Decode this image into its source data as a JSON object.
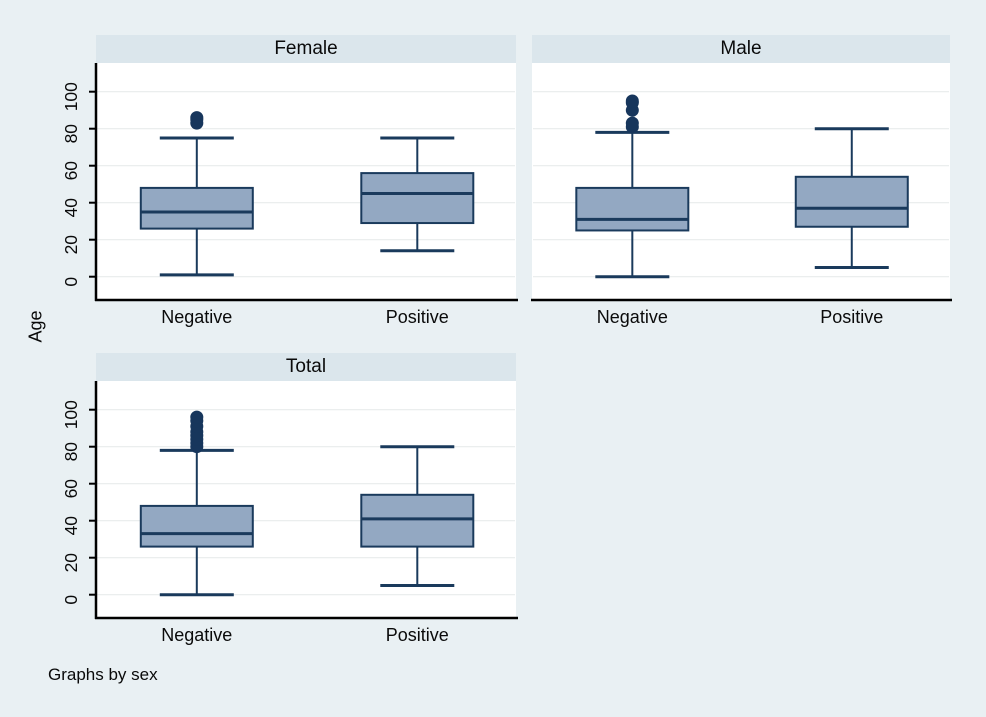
{
  "figure": {
    "ylabel": "Age",
    "caption": "Graphs by sex",
    "colors": {
      "background": "#e9f0f3",
      "panel_header": "#dbe6ec",
      "plot_background": "#ffffff",
      "grid": "#e8ecec",
      "axis": "#000000",
      "box_fill": "#93a8c2",
      "box_border": "#1a3a5c",
      "whisker": "#1a3a5c",
      "median": "#1a3a5c",
      "outlier": "#17365c"
    }
  },
  "chart_data": [
    {
      "type": "box",
      "panel": "Female",
      "categories": [
        "Negative",
        "Positive"
      ],
      "ylabel": "Age",
      "ylim": [
        0,
        100
      ],
      "yticks": [
        0,
        20,
        40,
        60,
        80,
        100
      ],
      "series": [
        {
          "category": "Negative",
          "whisker_low": 1,
          "q1": 26,
          "median": 35,
          "q3": 48,
          "whisker_high": 75,
          "outliers": [
            83,
            85,
            86
          ]
        },
        {
          "category": "Positive",
          "whisker_low": 14,
          "q1": 29,
          "median": 45,
          "q3": 56,
          "whisker_high": 75,
          "outliers": []
        }
      ]
    },
    {
      "type": "box",
      "panel": "Male",
      "categories": [
        "Negative",
        "Positive"
      ],
      "ylabel": "Age",
      "ylim": [
        0,
        100
      ],
      "yticks": [
        0,
        20,
        40,
        60,
        80,
        100
      ],
      "series": [
        {
          "category": "Negative",
          "whisker_low": 0,
          "q1": 25,
          "median": 31,
          "q3": 48,
          "whisker_high": 78,
          "outliers": [
            81,
            83,
            90,
            94,
            95
          ]
        },
        {
          "category": "Positive",
          "whisker_low": 5,
          "q1": 27,
          "median": 37,
          "q3": 54,
          "whisker_high": 80,
          "outliers": []
        }
      ]
    },
    {
      "type": "box",
      "panel": "Total",
      "categories": [
        "Negative",
        "Positive"
      ],
      "ylabel": "Age",
      "ylim": [
        0,
        100
      ],
      "yticks": [
        0,
        20,
        40,
        60,
        80,
        100
      ],
      "series": [
        {
          "category": "Negative",
          "whisker_low": 0,
          "q1": 26,
          "median": 33,
          "q3": 48,
          "whisker_high": 78,
          "outliers": [
            80,
            82,
            84,
            86,
            88,
            91,
            94,
            96
          ]
        },
        {
          "category": "Positive",
          "whisker_low": 5,
          "q1": 26,
          "median": 41,
          "q3": 54,
          "whisker_high": 80,
          "outliers": []
        }
      ]
    }
  ]
}
